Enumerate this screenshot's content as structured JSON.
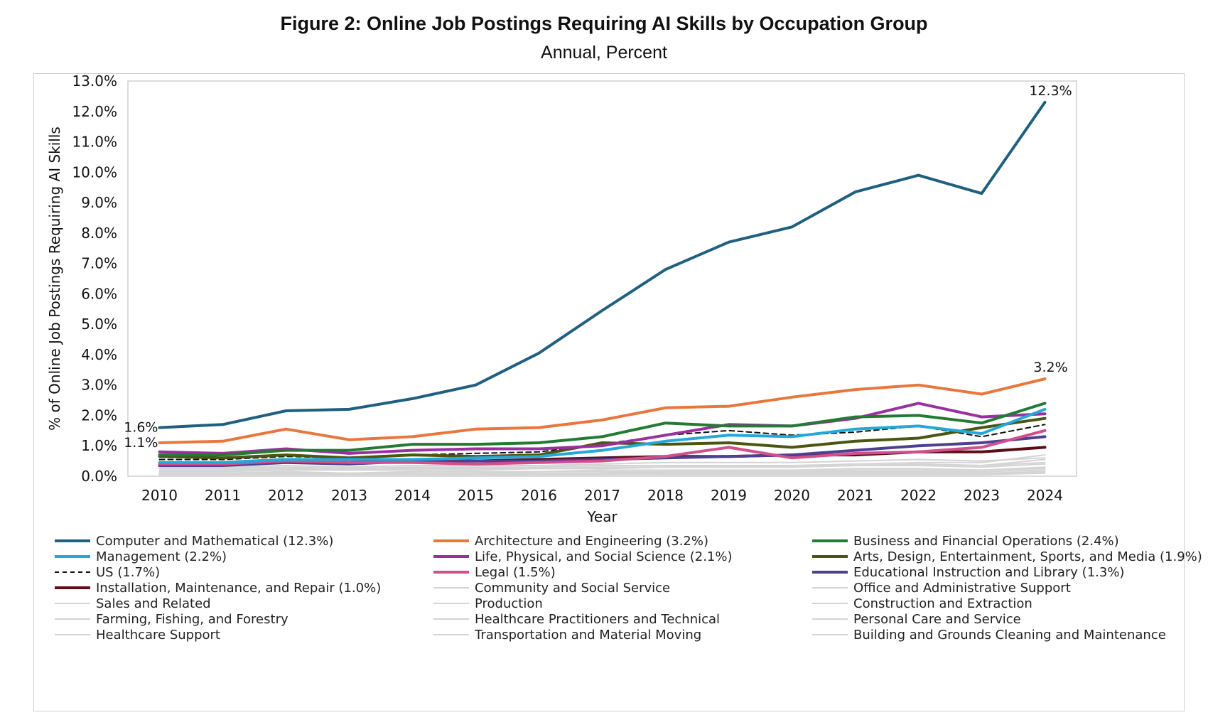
{
  "header": {
    "title": "Figure 2: Online Job Postings Requiring AI Skills by Occupation Group",
    "subtitle": "Annual, Percent"
  },
  "chart_data": {
    "type": "line",
    "title": "Figure 2: Online Job Postings Requiring AI Skills by Occupation Group",
    "subtitle": "Annual, Percent",
    "xlabel": "Year",
    "ylabel": "% of Online Job Postings Requiring AI Skills",
    "ylim": [
      0,
      13
    ],
    "yticks": [
      0,
      1,
      2,
      3,
      4,
      5,
      6,
      7,
      8,
      9,
      10,
      11,
      12,
      13
    ],
    "ytick_labels": [
      "0.0%",
      "1.0%",
      "2.0%",
      "3.0%",
      "4.0%",
      "5.0%",
      "6.0%",
      "7.0%",
      "8.0%",
      "9.0%",
      "10.0%",
      "11.0%",
      "12.0%",
      "13.0%"
    ],
    "x": [
      "2010",
      "2011",
      "2012",
      "2013",
      "2014",
      "2015",
      "2016",
      "2017",
      "2018",
      "2019",
      "2020",
      "2021",
      "2022",
      "2023",
      "2024"
    ],
    "grid": false,
    "legend_position": "bottom",
    "series": [
      {
        "name": "Computer and Mathematical (12.3%)",
        "color": "#1f5f7f",
        "width": 4,
        "dash": "",
        "values": [
          1.6,
          1.7,
          2.15,
          2.2,
          2.55,
          3.0,
          4.05,
          5.45,
          6.8,
          7.7,
          8.2,
          9.35,
          9.9,
          9.3,
          12.3
        ]
      },
      {
        "name": "Architecture and Engineering (3.2%)",
        "color": "#e8773c",
        "width": 4,
        "dash": "",
        "values": [
          1.1,
          1.15,
          1.55,
          1.2,
          1.3,
          1.55,
          1.6,
          1.85,
          2.25,
          2.3,
          2.6,
          2.85,
          3.0,
          2.7,
          3.2
        ]
      },
      {
        "name": "Business and Financial Operations (2.4%)",
        "color": "#237a33",
        "width": 4,
        "dash": "",
        "values": [
          0.7,
          0.7,
          0.85,
          0.85,
          1.05,
          1.05,
          1.1,
          1.3,
          1.75,
          1.65,
          1.65,
          1.95,
          2.0,
          1.75,
          2.4
        ]
      },
      {
        "name": "Management (2.2%)",
        "color": "#25a8d8",
        "width": 4,
        "dash": "",
        "values": [
          0.45,
          0.45,
          0.55,
          0.55,
          0.55,
          0.6,
          0.65,
          0.85,
          1.15,
          1.35,
          1.3,
          1.55,
          1.65,
          1.4,
          2.2
        ]
      },
      {
        "name": "Life, Physical, and Social Science (2.1%)",
        "color": "#9a2fa0",
        "width": 4,
        "dash": "",
        "values": [
          0.8,
          0.75,
          0.9,
          0.75,
          0.85,
          0.9,
          0.9,
          1.0,
          1.35,
          1.7,
          1.65,
          1.9,
          2.4,
          1.95,
          2.05
        ]
      },
      {
        "name": "Arts, Design, Entertainment, Sports, and Media (1.9%)",
        "color": "#4c5512",
        "width": 4,
        "dash": "",
        "values": [
          0.65,
          0.6,
          0.7,
          0.6,
          0.7,
          0.65,
          0.7,
          1.1,
          1.05,
          1.1,
          0.95,
          1.15,
          1.25,
          1.6,
          1.9
        ]
      },
      {
        "name": "US (1.7%)",
        "color": "#111111",
        "width": 2,
        "dash": "7,5",
        "values": [
          0.55,
          0.55,
          0.65,
          0.6,
          0.7,
          0.75,
          0.8,
          1.05,
          1.35,
          1.5,
          1.35,
          1.45,
          1.65,
          1.3,
          1.7
        ]
      },
      {
        "name": "Legal (1.5%)",
        "color": "#d14f8a",
        "width": 4,
        "dash": "",
        "values": [
          0.4,
          0.4,
          0.5,
          0.45,
          0.45,
          0.4,
          0.45,
          0.5,
          0.65,
          0.95,
          0.6,
          0.75,
          0.8,
          0.95,
          1.5
        ]
      },
      {
        "name": "Educational Instruction and Library (1.3%)",
        "color": "#4e3f91",
        "width": 4,
        "dash": "",
        "values": [
          0.35,
          0.35,
          0.45,
          0.4,
          0.5,
          0.5,
          0.5,
          0.55,
          0.6,
          0.65,
          0.7,
          0.85,
          1.0,
          1.1,
          1.3
        ]
      },
      {
        "name": "Installation, Maintenance, and Repair (1.0%)",
        "color": "#5a0f16",
        "width": 4,
        "dash": "",
        "values": [
          0.35,
          0.45,
          0.55,
          0.45,
          0.5,
          0.5,
          0.55,
          0.6,
          0.65,
          0.65,
          0.7,
          0.7,
          0.8,
          0.8,
          0.95
        ]
      },
      {
        "name": "Community and Social Service",
        "color": "#d4d4d4",
        "width": 2,
        "dash": "",
        "values": [
          0.3,
          0.3,
          0.35,
          0.3,
          0.35,
          0.35,
          0.35,
          0.4,
          0.45,
          0.45,
          0.45,
          0.5,
          0.55,
          0.5,
          0.6
        ]
      },
      {
        "name": "Office and Administrative Support",
        "color": "#d4d4d4",
        "width": 2,
        "dash": "",
        "values": [
          0.2,
          0.2,
          0.25,
          0.2,
          0.25,
          0.25,
          0.25,
          0.3,
          0.3,
          0.35,
          0.35,
          0.4,
          0.45,
          0.45,
          0.7
        ]
      },
      {
        "name": "Sales and Related",
        "color": "#d4d4d4",
        "width": 2,
        "dash": "",
        "values": [
          0.25,
          0.25,
          0.3,
          0.25,
          0.3,
          0.3,
          0.3,
          0.35,
          0.35,
          0.35,
          0.3,
          0.35,
          0.4,
          0.35,
          0.45
        ]
      },
      {
        "name": "Production",
        "color": "#d4d4d4",
        "width": 2,
        "dash": "",
        "values": [
          0.15,
          0.15,
          0.2,
          0.2,
          0.2,
          0.2,
          0.25,
          0.25,
          0.3,
          0.3,
          0.3,
          0.35,
          0.35,
          0.3,
          0.4
        ]
      },
      {
        "name": "Construction and Extraction",
        "color": "#d4d4d4",
        "width": 2,
        "dash": "",
        "values": [
          0.05,
          0.05,
          0.05,
          0.05,
          0.05,
          0.05,
          0.05,
          0.1,
          0.1,
          0.1,
          0.1,
          0.1,
          0.1,
          0.1,
          0.15
        ]
      },
      {
        "name": "Farming, Fishing, and Forestry",
        "color": "#d4d4d4",
        "width": 2,
        "dash": "",
        "values": [
          0.1,
          0.1,
          0.15,
          0.1,
          0.15,
          0.15,
          0.15,
          0.2,
          0.2,
          0.2,
          0.2,
          0.25,
          0.25,
          0.2,
          0.3
        ]
      },
      {
        "name": "Healthcare Practitioners and Technical",
        "color": "#d4d4d4",
        "width": 2,
        "dash": "",
        "values": [
          0.2,
          0.2,
          0.25,
          0.2,
          0.25,
          0.25,
          0.25,
          0.25,
          0.3,
          0.3,
          0.3,
          0.35,
          0.4,
          0.35,
          0.55
        ]
      },
      {
        "name": "Personal Care and Service",
        "color": "#d4d4d4",
        "width": 2,
        "dash": "",
        "values": [
          0.1,
          0.1,
          0.1,
          0.1,
          0.1,
          0.1,
          0.15,
          0.15,
          0.15,
          0.15,
          0.15,
          0.2,
          0.2,
          0.2,
          0.25
        ]
      },
      {
        "name": "Healthcare Support",
        "color": "#d4d4d4",
        "width": 2,
        "dash": "",
        "values": [
          0.05,
          0.05,
          0.1,
          0.1,
          0.1,
          0.1,
          0.1,
          0.1,
          0.15,
          0.15,
          0.15,
          0.15,
          0.15,
          0.15,
          0.2
        ]
      },
      {
        "name": "Transportation and Material Moving",
        "color": "#d4d4d4",
        "width": 2,
        "dash": "",
        "values": [
          0.05,
          0.05,
          0.05,
          0.05,
          0.05,
          0.05,
          0.05,
          0.05,
          0.1,
          0.1,
          0.1,
          0.1,
          0.1,
          0.1,
          0.1
        ]
      },
      {
        "name": "Building and Grounds Cleaning and Maintenance",
        "color": "#d4d4d4",
        "width": 2,
        "dash": "",
        "values": [
          0.05,
          0.05,
          0.05,
          0.05,
          0.05,
          0.05,
          0.05,
          0.05,
          0.05,
          0.05,
          0.05,
          0.05,
          0.05,
          0.05,
          0.1
        ]
      }
    ],
    "annotations": [
      {
        "text": "1.6%",
        "series": 0,
        "index": 0
      },
      {
        "text": "1.1%",
        "series": 1,
        "index": 0
      },
      {
        "text": "12.3%",
        "series": 0,
        "index": 14
      },
      {
        "text": "3.2%",
        "series": 1,
        "index": 14
      }
    ]
  }
}
